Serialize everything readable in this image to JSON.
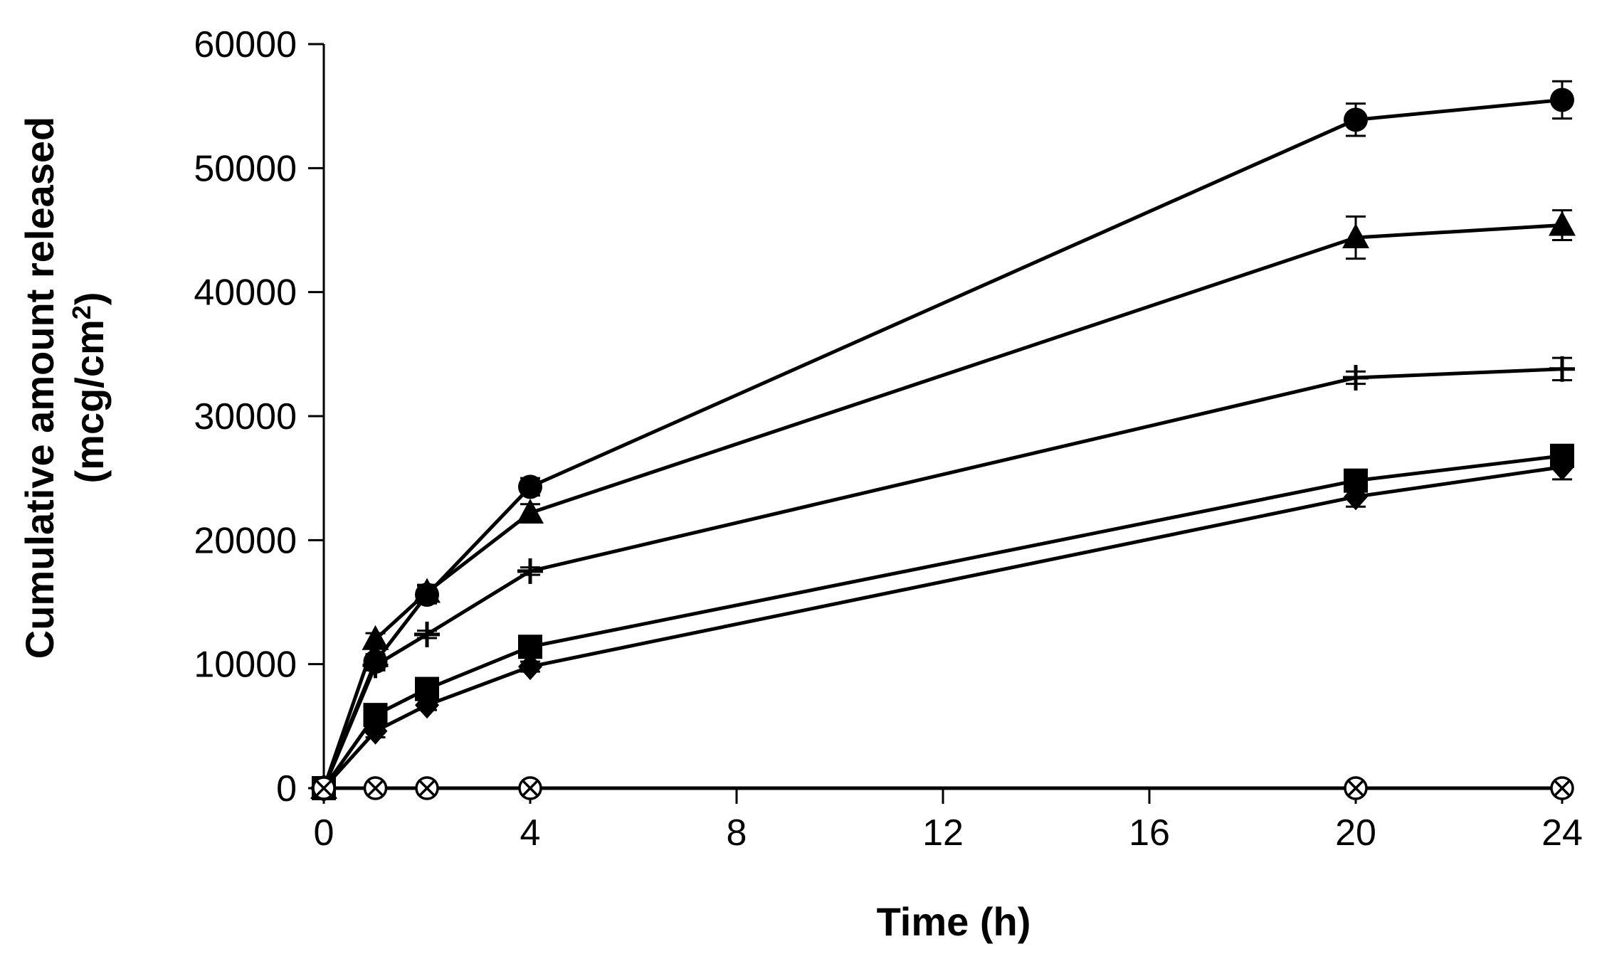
{
  "chart_data": {
    "type": "line",
    "title": "",
    "xlabel": "Time (h)",
    "ylabel_line1": "Cumulative amount released",
    "ylabel_line2_prefix": "(mcg/cm",
    "ylabel_line2_sup": "2",
    "ylabel_line2_suffix": ")",
    "xlim": [
      0,
      24
    ],
    "ylim": [
      0,
      60000
    ],
    "xticks": [
      0,
      4,
      8,
      12,
      16,
      20,
      24
    ],
    "yticks": [
      0,
      10000,
      20000,
      30000,
      40000,
      50000,
      60000
    ],
    "xtick_labels": [
      "0",
      "4",
      "8",
      "12",
      "16",
      "20",
      "24"
    ],
    "ytick_labels": [
      "0",
      "10000",
      "20000",
      "30000",
      "40000",
      "50000",
      "60000"
    ],
    "grid": false,
    "legend": "none",
    "color": "#000000",
    "series": [
      {
        "marker": "circle",
        "x": [
          0,
          1,
          2,
          4,
          20,
          24
        ],
        "y": [
          0,
          10200,
          15600,
          24300,
          53900,
          55500
        ],
        "err": [
          0,
          600,
          700,
          700,
          1300,
          1500
        ]
      },
      {
        "marker": "triangle",
        "x": [
          0,
          1,
          2,
          4,
          20,
          24
        ],
        "y": [
          0,
          12000,
          15800,
          22200,
          44400,
          45400
        ],
        "err": [
          0,
          500,
          600,
          700,
          1700,
          1200
        ]
      },
      {
        "marker": "plus",
        "x": [
          0,
          1,
          2,
          4,
          20,
          24
        ],
        "y": [
          0,
          9900,
          12400,
          17500,
          33100,
          33800
        ],
        "err": [
          0,
          400,
          300,
          300,
          500,
          900
        ]
      },
      {
        "marker": "square",
        "x": [
          0,
          1,
          2,
          4,
          20,
          24
        ],
        "y": [
          0,
          5900,
          8000,
          11400,
          24800,
          26800
        ],
        "err": [
          0,
          800,
          600,
          500,
          700,
          700
        ]
      },
      {
        "marker": "diamond",
        "x": [
          0,
          1,
          2,
          4,
          20,
          24
        ],
        "y": [
          0,
          4600,
          6700,
          9800,
          23500,
          25900
        ],
        "err": [
          0,
          500,
          400,
          400,
          800,
          1000
        ]
      },
      {
        "marker": "circle-x",
        "x": [
          0,
          1,
          2,
          4,
          20,
          24
        ],
        "y": [
          0,
          0,
          0,
          0,
          0,
          0
        ],
        "err": [
          0,
          0,
          0,
          0,
          0,
          0
        ]
      }
    ]
  }
}
